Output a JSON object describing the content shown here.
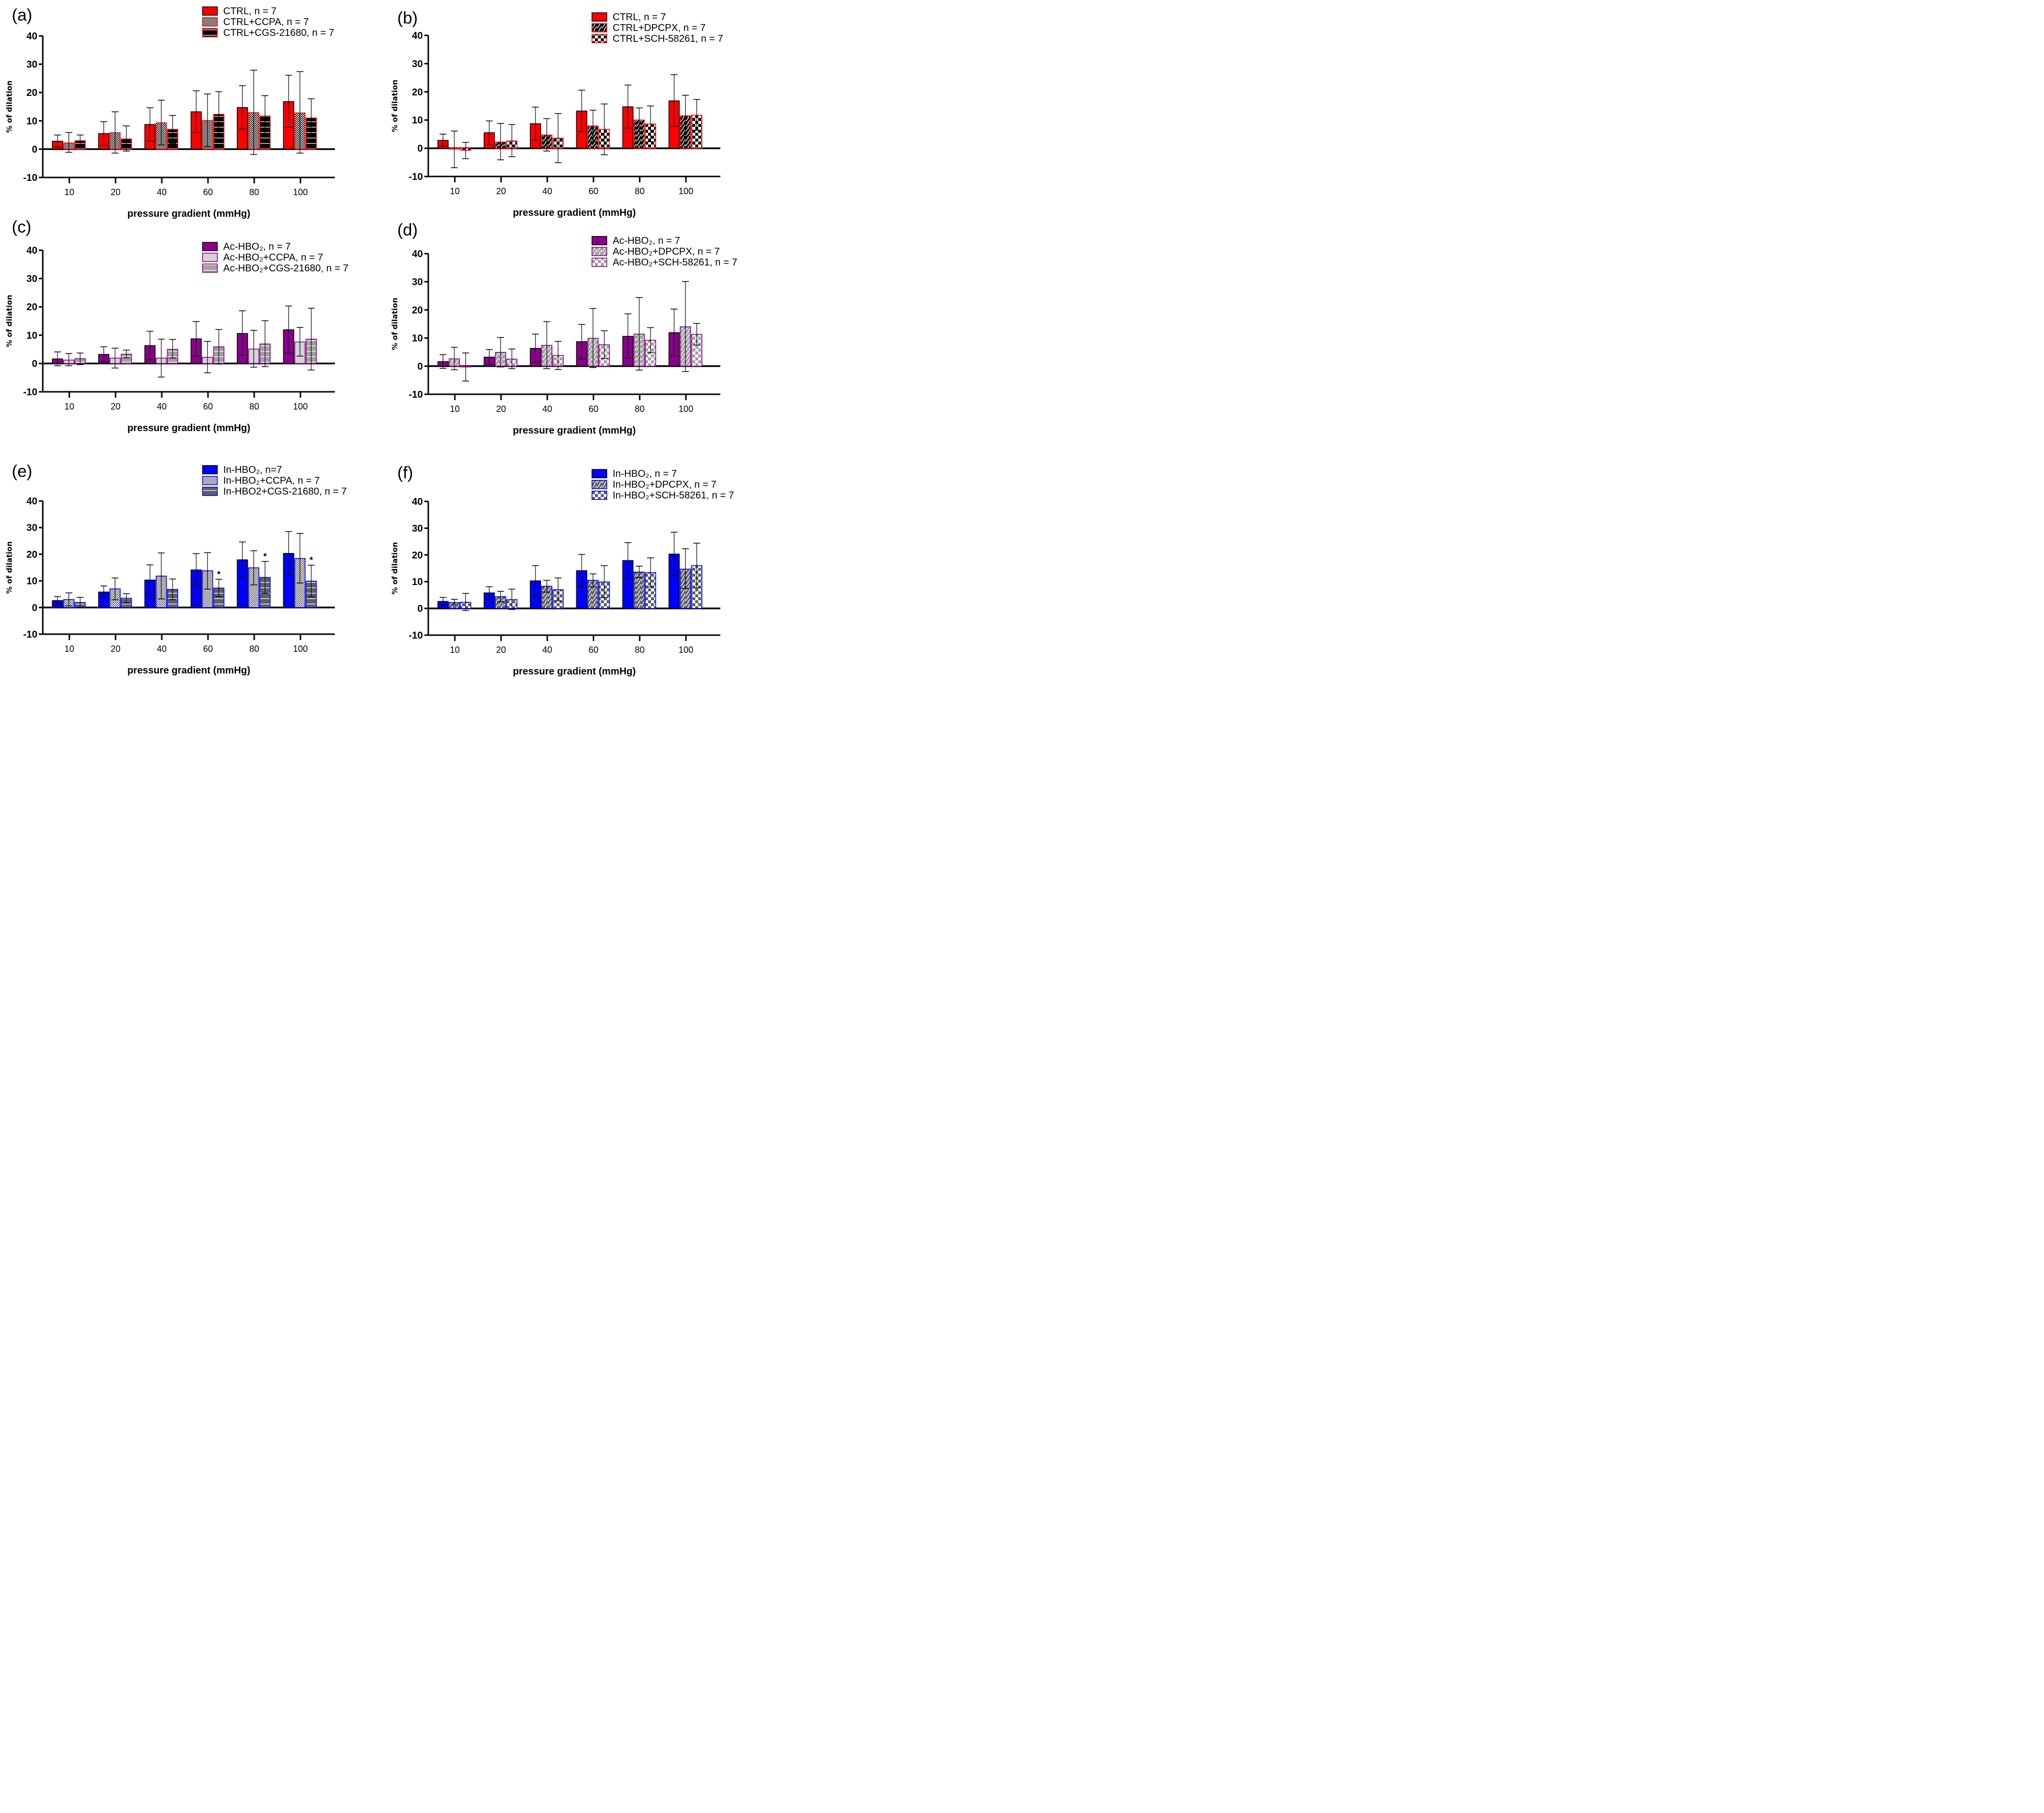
{
  "figure": {
    "x_axis_title": "pressure gradient (mmHg)",
    "y_axis_title": "% of dilation"
  },
  "chart_data": [
    {
      "panel": "(a)",
      "type": "bar",
      "title": "",
      "xlabel": "pressure gradient (mmHg)",
      "ylabel": "% of dilation",
      "ylim": [
        -10,
        40
      ],
      "yticks": [
        -10,
        0,
        10,
        20,
        30,
        40
      ],
      "categories": [
        "10",
        "20",
        "40",
        "60",
        "80",
        "100"
      ],
      "legend_position": "top-right",
      "series": [
        {
          "name": "CTRL, n = 7",
          "fill": "#ff0000",
          "edge": "#000000",
          "pattern": "solid",
          "values": [
            2.8,
            5.5,
            8.7,
            13.2,
            14.7,
            16.8
          ],
          "err_low": [
            0.8,
            1.3,
            2.8,
            5.9,
            7.1,
            7.7
          ],
          "err_high": [
            5.0,
            9.7,
            14.6,
            20.6,
            22.4,
            26.1
          ]
        },
        {
          "name": "CTRL+CCPA, n = 7",
          "fill": "#000000",
          "edge": "#ff0000",
          "pattern": "check-fine",
          "values": [
            2.2,
            5.8,
            9.3,
            10.1,
            12.9,
            12.8
          ],
          "err_low": [
            -1.1,
            -1.4,
            1.5,
            0.9,
            -1.9,
            -1.4
          ],
          "err_high": [
            5.9,
            13.2,
            17.3,
            19.5,
            27.9,
            27.4
          ]
        },
        {
          "name": "CTRL+CGS-21680, n = 7",
          "fill": "#000000",
          "edge": "#ff0000",
          "pattern": "hlines",
          "values": [
            3.0,
            3.6,
            7.0,
            12.3,
            11.7,
            11.0
          ],
          "err_low": [
            1.5,
            -0.7,
            2.1,
            4.3,
            4.5,
            4.2
          ],
          "err_high": [
            5.0,
            8.2,
            11.9,
            20.3,
            18.9,
            17.8
          ]
        }
      ],
      "annotations": []
    },
    {
      "panel": "(b)",
      "type": "bar",
      "title": "",
      "xlabel": "pressure gradient (mmHg)",
      "ylabel": "% of dilation",
      "ylim": [
        -10,
        40
      ],
      "yticks": [
        -10,
        0,
        10,
        20,
        30,
        40
      ],
      "categories": [
        "10",
        "20",
        "40",
        "60",
        "80",
        "100"
      ],
      "legend_position": "top-right",
      "series": [
        {
          "name": "CTRL, n = 7",
          "fill": "#ff0000",
          "edge": "#000000",
          "pattern": "solid",
          "values": [
            2.8,
            5.5,
            8.7,
            13.2,
            14.7,
            16.8
          ],
          "err_low": [
            0.8,
            1.3,
            2.8,
            5.9,
            7.1,
            7.7
          ],
          "err_high": [
            5.0,
            9.7,
            14.6,
            20.6,
            22.4,
            26.1
          ]
        },
        {
          "name": "CTRL+DPCPX, n = 7",
          "fill": "#000000",
          "edge": "#ff0000",
          "pattern": "zigzag",
          "values": [
            -0.3,
            2.2,
            4.7,
            7.9,
            10.0,
            11.5
          ],
          "err_low": [
            -6.9,
            -4.1,
            -1.0,
            2.3,
            5.8,
            4.3
          ],
          "err_high": [
            6.1,
            8.8,
            10.5,
            13.5,
            14.3,
            18.8
          ]
        },
        {
          "name": "CTRL+SCH-58261, n = 7",
          "fill": "#000000",
          "edge": "#ff0000",
          "pattern": "check-big",
          "values": [
            -0.7,
            2.6,
            3.6,
            6.7,
            8.6,
            11.7
          ],
          "err_low": [
            -3.7,
            -3.0,
            -5.1,
            -2.3,
            2.3,
            6.3
          ],
          "err_high": [
            2.1,
            8.4,
            12.3,
            15.7,
            15.0,
            17.3
          ]
        }
      ],
      "annotations": []
    },
    {
      "panel": "(c)",
      "type": "bar",
      "title": "",
      "xlabel": "pressure gradient (mmHg)",
      "ylabel": "% of dilation",
      "ylim": [
        -10,
        40
      ],
      "yticks": [
        -10,
        0,
        10,
        20,
        30,
        40
      ],
      "categories": [
        "10",
        "20",
        "40",
        "60",
        "80",
        "100"
      ],
      "legend_position": "top-right",
      "series": [
        {
          "name": "Ac-HBO₂, n = 7",
          "fill": "#8b008b",
          "edge": "#000000",
          "pattern": "solid",
          "values": [
            1.6,
            3.2,
            6.3,
            8.7,
            10.6,
            11.9
          ],
          "err_low": [
            -0.8,
            0.6,
            1.3,
            2.6,
            2.9,
            3.6
          ],
          "err_high": [
            4.1,
            5.9,
            11.4,
            14.8,
            18.6,
            20.3
          ]
        },
        {
          "name": "Ac-HBO₂+CCPA, n = 7",
          "fill": "#a9a9a9",
          "edge": "#8b008b",
          "pattern": "check-fine",
          "values": [
            1.2,
            1.9,
            1.9,
            2.2,
            5.1,
            7.6
          ],
          "err_low": [
            -0.8,
            -1.6,
            -4.8,
            -3.3,
            -1.3,
            2.6
          ],
          "err_high": [
            3.5,
            5.4,
            8.6,
            7.8,
            11.7,
            12.7
          ]
        },
        {
          "name": "Ac-HBO₂+CGS-21680, n = 7",
          "fill": "#a0a0a0",
          "edge": "#8b008b",
          "pattern": "hlines",
          "values": [
            1.7,
            3.3,
            5.0,
            5.9,
            6.9,
            8.6
          ],
          "err_low": [
            -0.4,
            2.0,
            1.9,
            -0.2,
            -1.1,
            -2.3
          ],
          "err_high": [
            3.7,
            4.7,
            8.5,
            12.0,
            15.1,
            19.5
          ]
        }
      ],
      "annotations": []
    },
    {
      "panel": "(d)",
      "type": "bar",
      "title": "",
      "xlabel": "pressure gradient (mmHg)",
      "ylabel": "% of dilation",
      "ylim": [
        -10,
        40
      ],
      "yticks": [
        -10,
        0,
        10,
        20,
        30,
        40
      ],
      "categories": [
        "10",
        "20",
        "40",
        "60",
        "80",
        "100"
      ],
      "legend_position": "top-right",
      "series": [
        {
          "name": "Ac-HBO₂, n = 7",
          "fill": "#8b008b",
          "edge": "#000000",
          "pattern": "solid",
          "values": [
            1.6,
            3.2,
            6.3,
            8.7,
            10.6,
            11.9
          ],
          "err_low": [
            -0.8,
            0.6,
            1.3,
            2.6,
            2.9,
            3.6
          ],
          "err_high": [
            4.1,
            5.9,
            11.4,
            14.8,
            18.6,
            20.3
          ]
        },
        {
          "name": "Ac-HBO₂+DPCPX, n = 7",
          "fill": "#a0a0a0",
          "edge": "#8b008b",
          "pattern": "zigzag",
          "values": [
            2.6,
            4.9,
            7.4,
            9.9,
            11.4,
            14.0
          ],
          "err_low": [
            -1.3,
            -0.3,
            -0.9,
            -0.5,
            -1.4,
            -1.9
          ],
          "err_high": [
            6.7,
            10.2,
            15.8,
            20.5,
            24.4,
            30.1
          ]
        },
        {
          "name": "Ac-HBO₂+SCH-58261, n = 7",
          "fill": "#a0a0a0",
          "edge": "#8b008b",
          "pattern": "check-big",
          "values": [
            -0.3,
            2.5,
            3.8,
            7.6,
            9.2,
            11.3
          ],
          "err_low": [
            -5.3,
            -0.9,
            -1.2,
            2.7,
            4.8,
            7.5
          ],
          "err_high": [
            4.7,
            6.1,
            8.8,
            12.6,
            13.7,
            15.2
          ]
        }
      ],
      "annotations": []
    },
    {
      "panel": "(e)",
      "type": "bar",
      "title": "",
      "xlabel": "pressure gradient (mmHg)",
      "ylabel": "% of dilation",
      "ylim": [
        -10,
        40
      ],
      "yticks": [
        -10,
        0,
        10,
        20,
        30,
        40
      ],
      "categories": [
        "10",
        "20",
        "40",
        "60",
        "80",
        "100"
      ],
      "legend_position": "top-right",
      "series": [
        {
          "name": "In-HBO₂, n=7",
          "fill": "#0000ff",
          "edge": "#000000",
          "pattern": "solid",
          "values": [
            2.6,
            5.8,
            10.3,
            14.1,
            17.9,
            20.3
          ],
          "err_low": [
            1.2,
            3.5,
            4.5,
            8.1,
            11.2,
            12.1
          ],
          "err_high": [
            4.1,
            8.1,
            16.0,
            20.2,
            24.6,
            28.5
          ]
        },
        {
          "name": "In-HBO₂+CCPA, n = 7",
          "fill": "#5a5a5a",
          "edge": "#0000ff",
          "pattern": "check-fine",
          "values": [
            3.0,
            7.0,
            11.8,
            13.8,
            14.9,
            18.4
          ],
          "err_low": [
            0.6,
            2.9,
            3.2,
            6.9,
            8.5,
            9.2
          ],
          "err_high": [
            5.5,
            11.1,
            20.5,
            20.6,
            21.3,
            27.8
          ]
        },
        {
          "name": "In-HBO2+CGS-21680, n = 7",
          "fill": "#606060",
          "edge": "#0000ff",
          "pattern": "hlines",
          "values": [
            1.9,
            3.5,
            6.8,
            7.3,
            11.3,
            9.9
          ],
          "err_low": [
            0.1,
            1.7,
            3.0,
            4.1,
            5.3,
            4.0
          ],
          "err_high": [
            3.8,
            5.2,
            10.7,
            10.6,
            17.3,
            15.9
          ]
        }
      ],
      "annotations": [
        {
          "text": "*",
          "category": "60",
          "series": 2
        },
        {
          "text": "*",
          "category": "80",
          "series": 2
        },
        {
          "text": "*",
          "category": "100",
          "series": 2
        }
      ]
    },
    {
      "panel": "(f)",
      "type": "bar",
      "title": "",
      "xlabel": "pressure gradient (mmHg)",
      "ylabel": "% of dilation",
      "ylim": [
        -10,
        40
      ],
      "yticks": [
        -10,
        0,
        10,
        20,
        30,
        40
      ],
      "categories": [
        "10",
        "20",
        "40",
        "60",
        "80",
        "100"
      ],
      "legend_position": "top-right",
      "series": [
        {
          "name": "In-HBO₂, n = 7",
          "fill": "#0000ff",
          "edge": "#000000",
          "pattern": "solid",
          "values": [
            2.6,
            5.8,
            10.3,
            14.1,
            17.9,
            20.3
          ],
          "err_low": [
            1.2,
            3.5,
            4.5,
            8.1,
            11.2,
            12.1
          ],
          "err_high": [
            4.1,
            8.1,
            16.0,
            20.2,
            24.6,
            28.5
          ]
        },
        {
          "name": "In-HBO₂+DPCPX, n = 7",
          "fill": "#606060",
          "edge": "#0000ff",
          "pattern": "zigzag",
          "values": [
            2.2,
            4.4,
            8.3,
            10.5,
            13.6,
            14.7
          ],
          "err_low": [
            1.3,
            2.5,
            6.1,
            8.1,
            11.5,
            7.4
          ],
          "err_high": [
            3.4,
            6.4,
            10.5,
            12.9,
            15.8,
            22.3
          ]
        },
        {
          "name": "In-HBO₂+SCH-58261, n = 7",
          "fill": "#606060",
          "edge": "#0000ff",
          "pattern": "check-big",
          "values": [
            2.3,
            3.3,
            7.0,
            9.9,
            13.4,
            16.0
          ],
          "err_low": [
            -0.8,
            -0.4,
            2.8,
            4.0,
            8.0,
            7.7
          ],
          "err_high": [
            5.6,
            7.2,
            11.4,
            16.0,
            18.9,
            24.4
          ]
        }
      ],
      "annotations": []
    }
  ]
}
